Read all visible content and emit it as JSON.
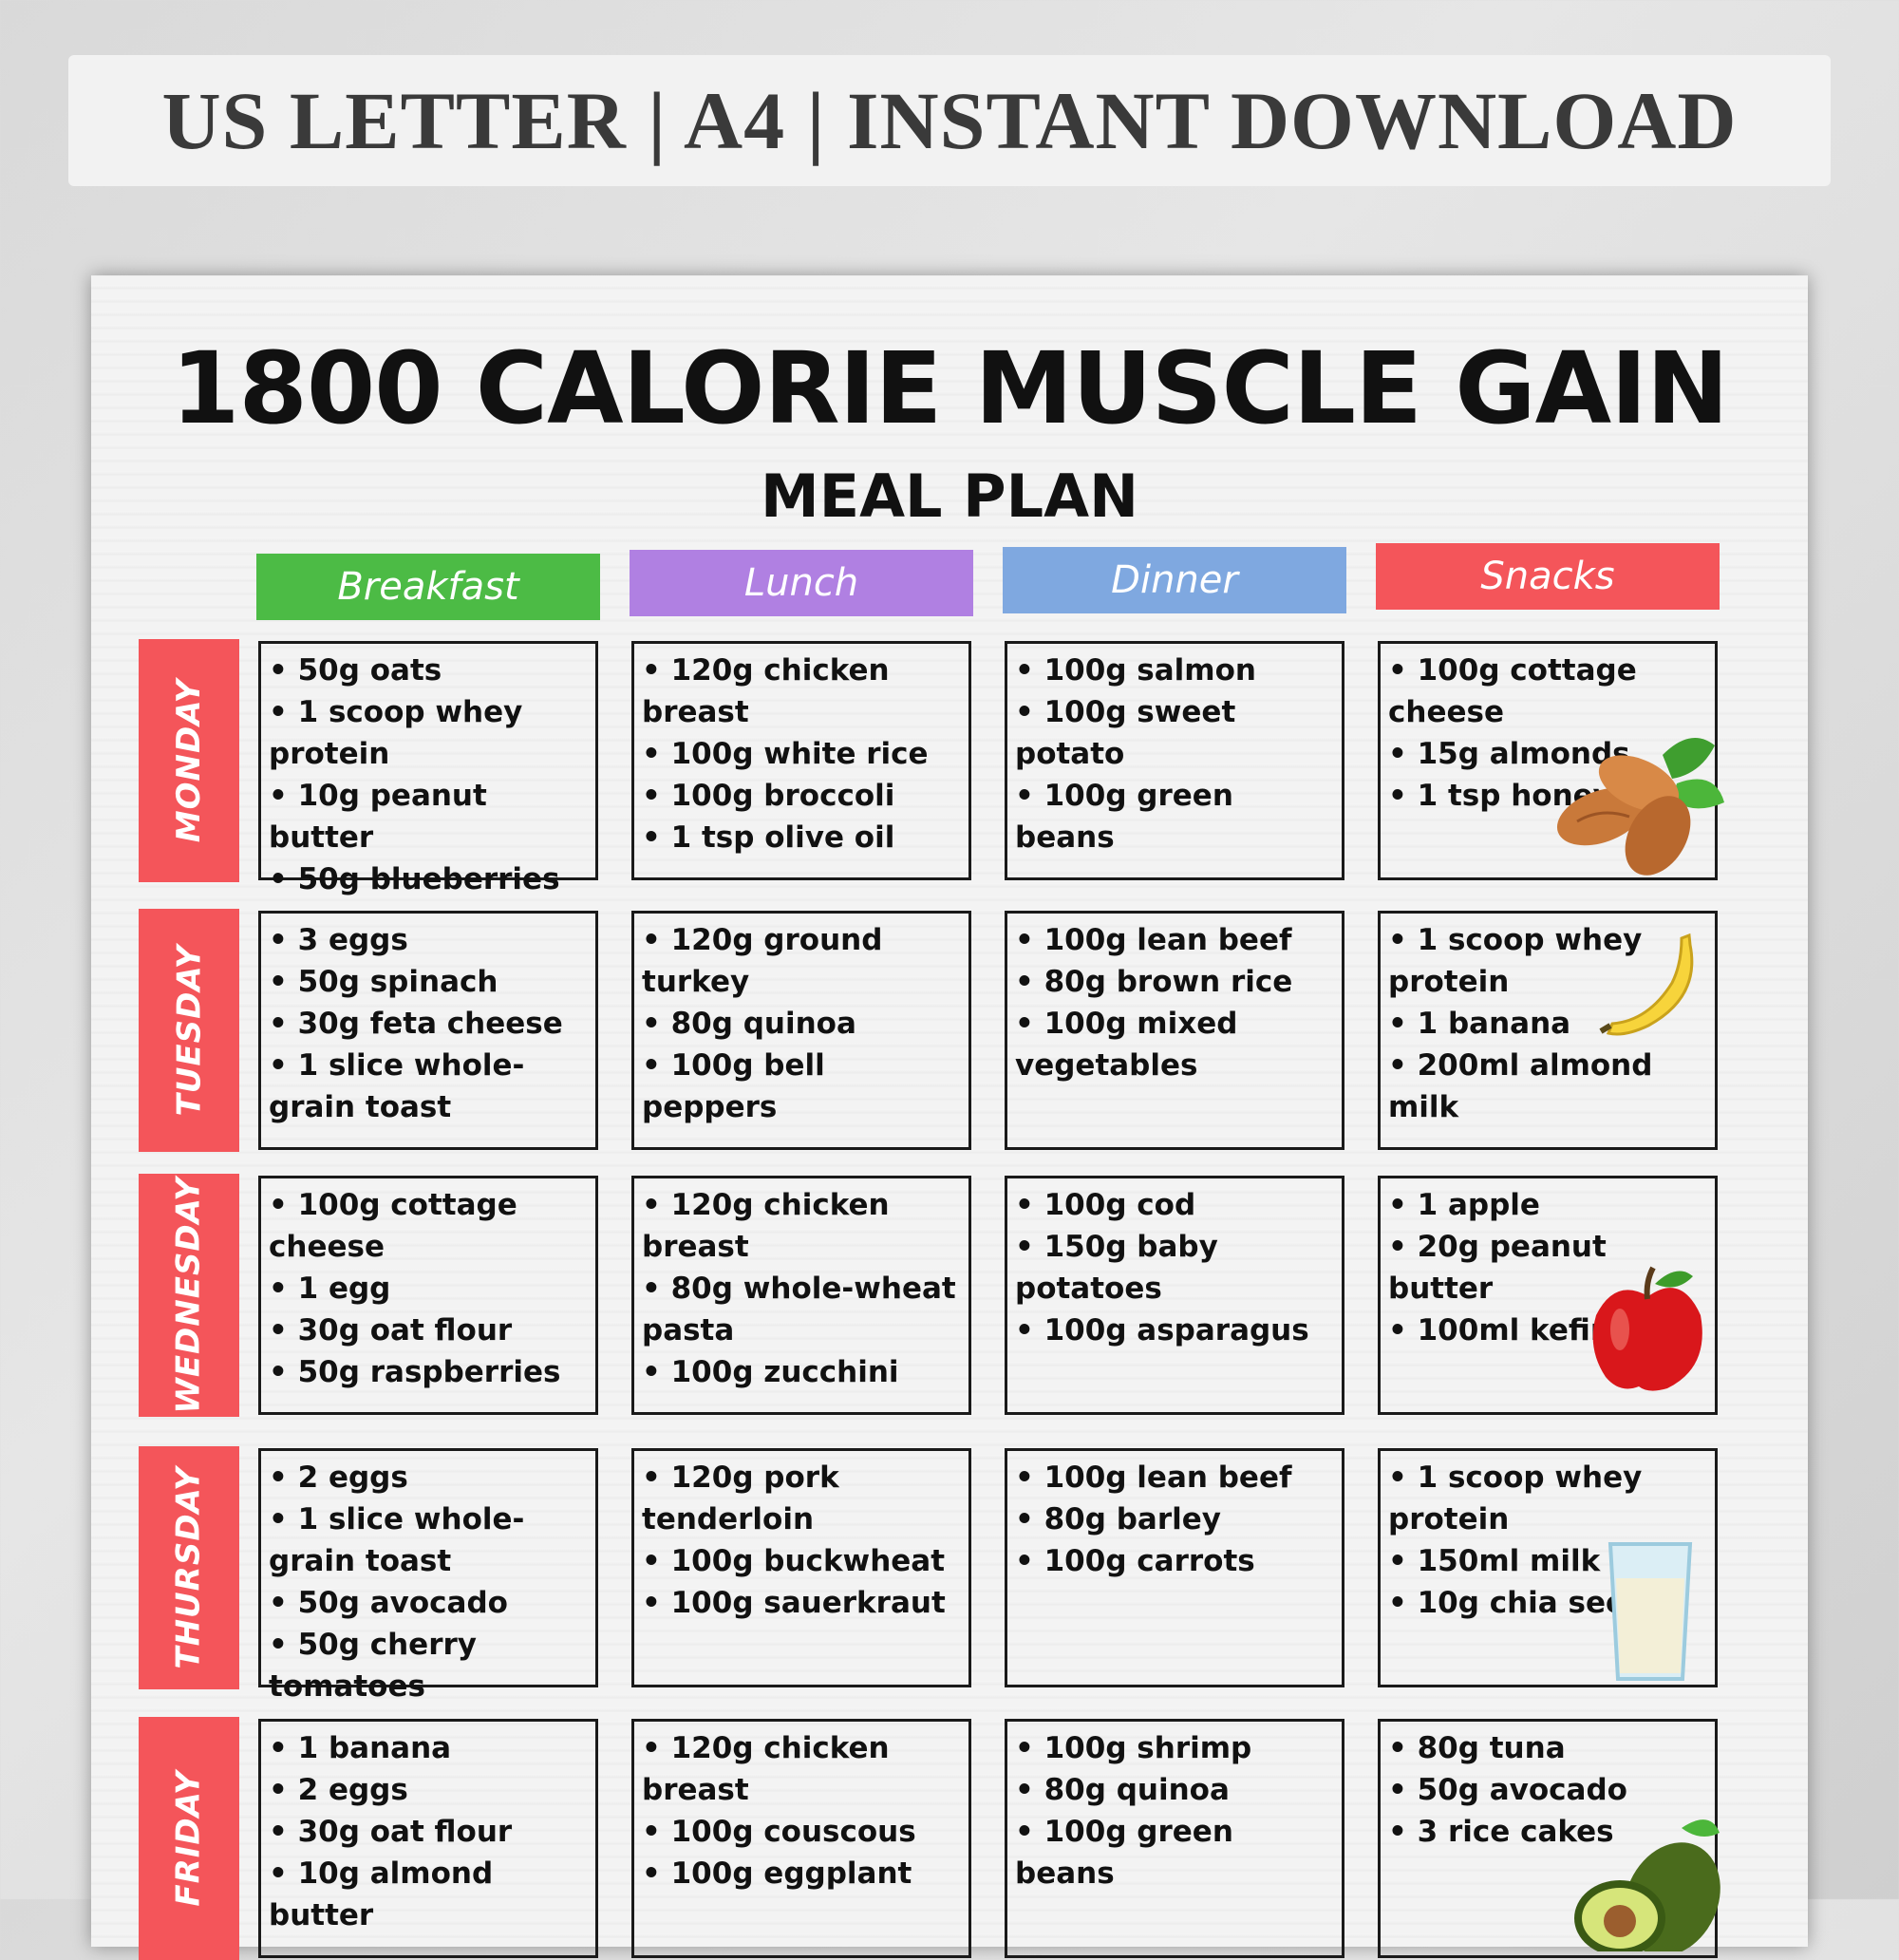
{
  "banner": {
    "text": "US LETTER | A4 | INSTANT DOWNLOAD"
  },
  "title": {
    "main": "1800 CALORIE MUSCLE GAIN",
    "sub": "MEAL PLAN"
  },
  "columns": [
    {
      "label": "Breakfast",
      "color": "#4cbb45"
    },
    {
      "label": "Lunch",
      "color": "#b080e2"
    },
    {
      "label": "Dinner",
      "color": "#7fa8e0"
    },
    {
      "label": "Snacks",
      "color": "#f4555a"
    }
  ],
  "day_color": "#f4555a",
  "days": [
    {
      "name": "MONDAY",
      "meals": [
        [
          "50g oats",
          "1 scoop whey protein",
          "10g peanut butter",
          "50g blueberries"
        ],
        [
          "120g chicken breast",
          "100g white rice",
          "100g broccoli",
          "1 tsp olive oil"
        ],
        [
          "100g salmon",
          "100g sweet potato",
          "100g green beans"
        ],
        [
          "100g cottage cheese",
          "15g almonds",
          "1 tsp honey"
        ]
      ]
    },
    {
      "name": "TUESDAY",
      "meals": [
        [
          "3 eggs",
          "50g spinach",
          "30g feta cheese",
          "1 slice whole-grain toast"
        ],
        [
          "120g ground turkey",
          "80g quinoa",
          "100g bell peppers"
        ],
        [
          "100g lean beef",
          "80g brown rice",
          "100g mixed vegetables"
        ],
        [
          "1 scoop whey protein",
          "1 banana",
          "200ml almond milk"
        ]
      ]
    },
    {
      "name": "WEDNESDAY",
      "meals": [
        [
          "100g cottage cheese",
          "1 egg",
          "30g oat flour",
          "50g raspberries"
        ],
        [
          "120g chicken breast",
          "80g whole-wheat pasta",
          "100g zucchini"
        ],
        [
          "100g cod",
          "150g baby potatoes",
          "100g asparagus"
        ],
        [
          "1 apple",
          "20g peanut butter",
          "100ml kefir"
        ]
      ]
    },
    {
      "name": "THURSDAY",
      "meals": [
        [
          "2 eggs",
          "1 slice whole-grain toast",
          "50g avocado",
          "50g cherry tomatoes"
        ],
        [
          "120g pork tenderloin",
          "100g buckwheat",
          "100g sauerkraut"
        ],
        [
          "100g lean beef",
          "80g barley",
          "100g carrots"
        ],
        [
          "1 scoop whey protein",
          "150ml milk",
          "10g chia seeds"
        ]
      ]
    },
    {
      "name": "FRIDAY",
      "meals": [
        [
          "1 banana",
          "2 eggs",
          "30g oat flour",
          "10g almond butter"
        ],
        [
          "120g chicken breast",
          "100g couscous",
          "100g eggplant"
        ],
        [
          "100g shrimp",
          "80g quinoa",
          "100g green beans"
        ],
        [
          "80g tuna",
          "50g avocado",
          "3 rice cakes"
        ]
      ]
    }
  ],
  "food_icons": [
    "almonds-icon",
    "banana-icon",
    "apple-icon",
    "milk-glass-icon",
    "avocado-icon"
  ]
}
